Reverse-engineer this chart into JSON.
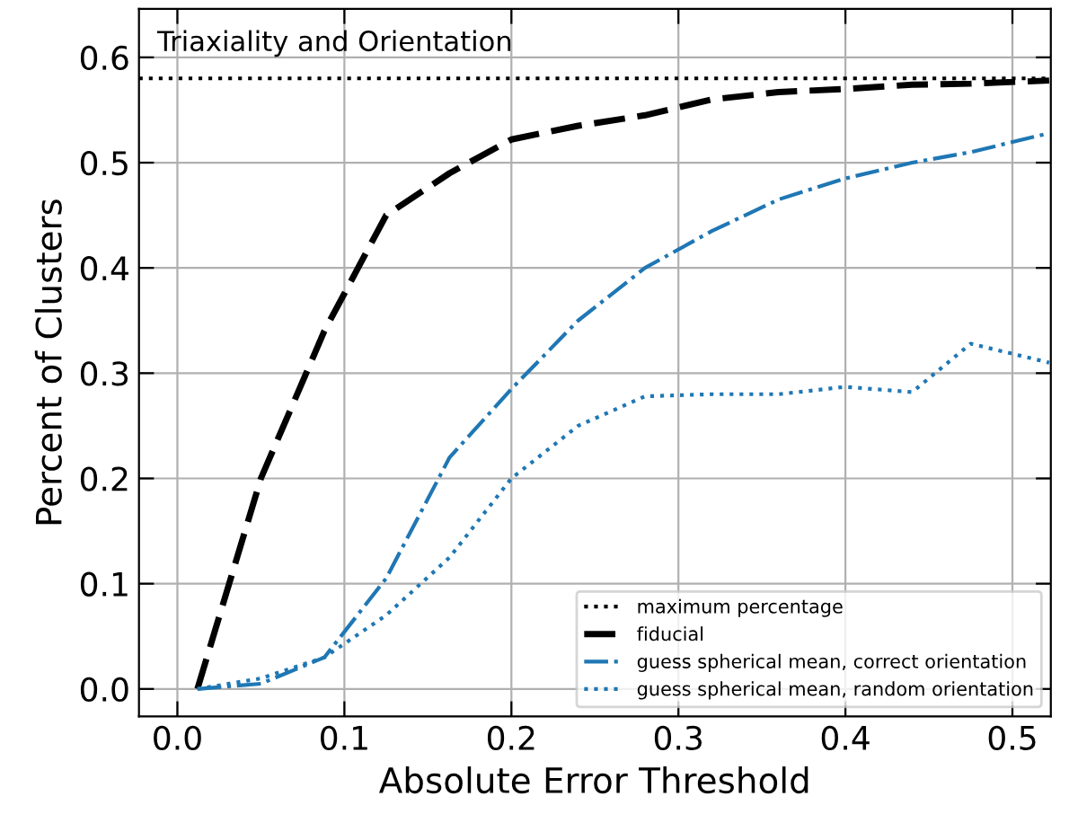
{
  "chart_data": {
    "type": "line",
    "title": "Triaxiality and Orientation",
    "xlabel": "Absolute Error Threshold",
    "ylabel": "Percent of Clusters",
    "x": [
      0.012,
      0.05,
      0.088,
      0.125,
      0.163,
      0.2,
      0.24,
      0.28,
      0.32,
      0.36,
      0.4,
      0.44,
      0.475,
      0.522
    ],
    "series": [
      {
        "name": "fiducial",
        "color": "#000000",
        "line_style": "dashed",
        "values": [
          0.0,
          0.2,
          0.34,
          0.45,
          0.49,
          0.522,
          0.535,
          0.545,
          0.56,
          0.567,
          0.57,
          0.574,
          0.575,
          0.578
        ]
      },
      {
        "name": "guess spherical mean, correct orientation",
        "color": "#1f77b4",
        "line_style": "dashdot",
        "values": [
          0.0,
          0.005,
          0.03,
          0.105,
          0.22,
          0.285,
          0.35,
          0.4,
          0.435,
          0.465,
          0.485,
          0.5,
          0.51,
          0.528
        ]
      },
      {
        "name": "guess spherical mean, random orientation",
        "color": "#1f77b4",
        "line_style": "dotted",
        "values": [
          0.0,
          0.01,
          0.03,
          0.07,
          0.125,
          0.2,
          0.25,
          0.278,
          0.28,
          0.28,
          0.287,
          0.282,
          0.328,
          0.31
        ]
      }
    ],
    "ref_lines": [
      {
        "axis": "y",
        "value": 0.58,
        "label": "maximum percentage",
        "color": "#000000",
        "line_style": "dotted"
      }
    ],
    "xlim": [
      -0.023,
      0.523
    ],
    "ylim": [
      -0.026,
      0.646
    ],
    "xticks": [
      {
        "value": 0,
        "label": "0.0"
      },
      0.1,
      0.2,
      0.3,
      0.4,
      0.5
    ],
    "yticks": [
      {
        "value": 0,
        "label": "0.0"
      },
      0.1,
      0.2,
      0.3,
      0.4,
      0.5,
      0.6
    ],
    "grid": true,
    "legend": "bottom right"
  }
}
